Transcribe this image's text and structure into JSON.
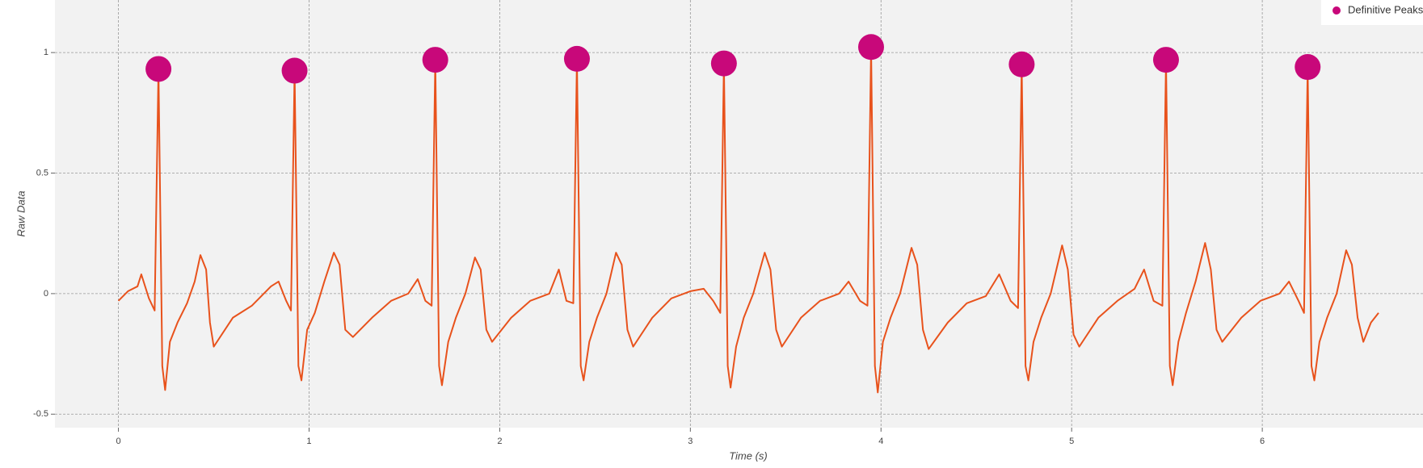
{
  "chart_data": {
    "type": "line",
    "xlabel": "Time (s)",
    "ylabel": "Raw Data",
    "xlim": [
      -0.333,
      6.843
    ],
    "ylim": [
      -0.556,
      1.218
    ],
    "xticks": [
      0,
      1,
      2,
      3,
      4,
      5,
      6
    ],
    "yticks": [
      -0.5,
      0,
      0.5,
      1
    ],
    "grid": true,
    "legend": "upper right",
    "line": {
      "color": "#e8521c",
      "x": [
        0,
        0.05,
        0.1,
        0.12,
        0.16,
        0.19,
        0.21,
        0.23,
        0.245,
        0.27,
        0.31,
        0.36,
        0.4,
        0.43,
        0.46,
        0.48,
        0.5,
        0.6,
        0.7,
        0.8,
        0.84,
        0.88,
        0.905,
        0.924,
        0.944,
        0.96,
        0.99,
        1.03,
        1.08,
        1.13,
        1.16,
        1.19,
        1.23,
        1.33,
        1.43,
        1.52,
        1.57,
        1.61,
        1.643,
        1.662,
        1.682,
        1.697,
        1.73,
        1.77,
        1.82,
        1.87,
        1.9,
        1.93,
        1.96,
        2.06,
        2.16,
        2.26,
        2.31,
        2.35,
        2.386,
        2.405,
        2.425,
        2.44,
        2.47,
        2.51,
        2.56,
        2.61,
        2.64,
        2.67,
        2.7,
        2.8,
        2.9,
        3.0,
        3.07,
        3.12,
        3.157,
        3.176,
        3.196,
        3.211,
        3.24,
        3.28,
        3.33,
        3.39,
        3.42,
        3.45,
        3.48,
        3.58,
        3.68,
        3.78,
        3.83,
        3.89,
        3.929,
        3.948,
        3.968,
        3.983,
        4.01,
        4.05,
        4.1,
        4.16,
        4.19,
        4.22,
        4.25,
        4.35,
        4.45,
        4.55,
        4.62,
        4.68,
        4.719,
        4.738,
        4.758,
        4.773,
        4.8,
        4.84,
        4.89,
        4.95,
        4.98,
        5.01,
        5.04,
        5.14,
        5.24,
        5.33,
        5.38,
        5.43,
        5.476,
        5.495,
        5.515,
        5.53,
        5.56,
        5.6,
        5.65,
        5.7,
        5.73,
        5.76,
        5.79,
        5.89,
        5.99,
        6.09,
        6.14,
        6.19,
        6.219,
        6.238,
        6.258,
        6.273,
        6.3,
        6.34,
        6.39,
        6.44,
        6.47,
        6.5,
        6.53,
        6.57,
        6.61
      ],
      "values": [
        -0.03,
        0.01,
        0.03,
        0.08,
        -0.02,
        -0.07,
        0.932,
        -0.3,
        -0.4,
        -0.2,
        -0.12,
        -0.04,
        0.05,
        0.16,
        0.1,
        -0.12,
        -0.22,
        -0.1,
        -0.05,
        0.03,
        0.05,
        -0.03,
        -0.07,
        0.925,
        -0.3,
        -0.36,
        -0.15,
        -0.08,
        0.05,
        0.17,
        0.12,
        -0.15,
        -0.18,
        -0.1,
        -0.03,
        0.0,
        0.06,
        -0.03,
        -0.05,
        0.97,
        -0.3,
        -0.38,
        -0.2,
        -0.1,
        0.0,
        0.15,
        0.1,
        -0.15,
        -0.2,
        -0.1,
        -0.03,
        0.0,
        0.1,
        -0.03,
        -0.04,
        0.974,
        -0.3,
        -0.36,
        -0.2,
        -0.1,
        0.0,
        0.17,
        0.12,
        -0.15,
        -0.22,
        -0.1,
        -0.02,
        0.01,
        0.02,
        -0.03,
        -0.08,
        0.955,
        -0.3,
        -0.39,
        -0.22,
        -0.1,
        0.0,
        0.17,
        0.1,
        -0.15,
        -0.22,
        -0.1,
        -0.03,
        0.0,
        0.05,
        -0.03,
        -0.05,
        1.023,
        -0.3,
        -0.41,
        -0.2,
        -0.1,
        0.0,
        0.19,
        0.12,
        -0.15,
        -0.23,
        -0.12,
        -0.04,
        -0.01,
        0.08,
        -0.03,
        -0.06,
        0.951,
        -0.3,
        -0.36,
        -0.2,
        -0.1,
        0.0,
        0.2,
        0.1,
        -0.17,
        -0.22,
        -0.1,
        -0.03,
        0.02,
        0.1,
        -0.03,
        -0.05,
        0.97,
        -0.3,
        -0.38,
        -0.2,
        -0.08,
        0.05,
        0.21,
        0.1,
        -0.15,
        -0.2,
        -0.1,
        -0.03,
        0.0,
        0.05,
        -0.03,
        -0.08,
        0.94,
        -0.3,
        -0.36,
        -0.2,
        -0.1,
        0.0,
        0.18,
        0.12,
        -0.1,
        -0.2,
        -0.12,
        -0.08
      ]
    },
    "peaks": {
      "name": "Definitive Peaks",
      "color": "#c8087a",
      "x": [
        0.21,
        0.924,
        1.662,
        2.405,
        3.176,
        3.948,
        4.738,
        5.495,
        6.238
      ],
      "values": [
        0.932,
        0.925,
        0.97,
        0.974,
        0.955,
        1.023,
        0.951,
        0.97,
        0.94
      ]
    }
  }
}
